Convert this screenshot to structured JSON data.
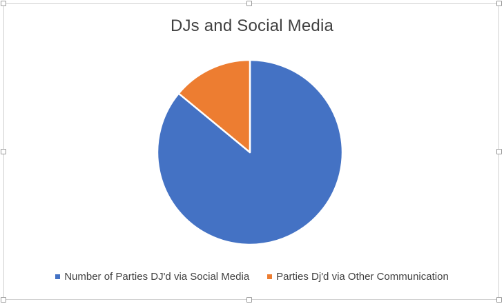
{
  "chart_data": {
    "type": "pie",
    "title": "DJs and Social Media",
    "categories": [
      "Number of Parties DJ'd via Social Media",
      "Parties Dj'd via Other Communication"
    ],
    "values": [
      86,
      14
    ],
    "colors": [
      "#4472C4",
      "#ED7D31"
    ],
    "legend_position": "bottom"
  }
}
